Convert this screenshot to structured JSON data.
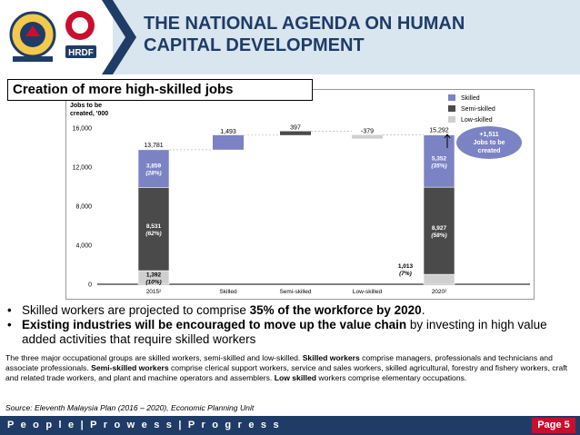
{
  "header": {
    "title_line1": "THE NATIONAL AGENDA ON HUMAN",
    "title_line2": "CAPITAL DEVELOPMENT",
    "logo_text": "HRDF"
  },
  "subtitle": "Creation of more high-skilled jobs",
  "chart_data": {
    "type": "bar",
    "ylabel": "Jobs to be created, '000",
    "ylim": [
      0,
      16000
    ],
    "yticks": [
      "0",
      "4,000",
      "8,000",
      "12,000",
      "16,000"
    ],
    "categories": [
      "2015²",
      "Skilled",
      "Semi-skilled",
      "Low-skilled",
      "2020²"
    ],
    "series": [
      {
        "name": "Skilled",
        "color": "#7b83c4"
      },
      {
        "name": "Semi-skilled",
        "color": "#4a4a4a"
      },
      {
        "name": "Low-skilled",
        "color": "#cfcfcf"
      }
    ],
    "bars": [
      {
        "category": "2015²",
        "total": 13781,
        "total_label": "13,781",
        "segments": [
          {
            "series": "Low-skilled",
            "value": 1392,
            "label1": "1,392",
            "label2": "(10%)"
          },
          {
            "series": "Semi-skilled",
            "value": 8531,
            "label1": "8,531",
            "label2": "(62%)"
          },
          {
            "series": "Skilled",
            "value": 3859,
            "label1": "3,859",
            "label2": "(28%)"
          }
        ]
      },
      {
        "category": "Skilled",
        "base": 13781,
        "delta": 1493,
        "label": "1,493",
        "series": "Skilled"
      },
      {
        "category": "Semi-skilled",
        "base": 15274,
        "delta": 397,
        "label": "397",
        "series": "Semi-skilled"
      },
      {
        "category": "Low-skilled",
        "base": 15292,
        "delta": -379,
        "label": "-379",
        "series": "Low-skilled"
      },
      {
        "category": "2020²",
        "total": 15292,
        "total_label": "15,292",
        "segments": [
          {
            "series": "Low-skilled",
            "value": 1013,
            "label1": "1,013",
            "label2": "(7%)"
          },
          {
            "series": "Semi-skilled",
            "value": 8927,
            "label1": "8,927",
            "label2": "(58%)"
          },
          {
            "series": "Skilled",
            "value": 5352,
            "label1": "5,352",
            "label2": "(35%)"
          }
        ]
      }
    ],
    "callout": {
      "line1": "+1,511",
      "line2": "Jobs to be",
      "line3": "created"
    },
    "legend_placement": "top-right"
  },
  "bullets": [
    {
      "pre": "Skilled workers are projected to comprise ",
      "bold": "35% of the workforce by 2020",
      "post": "."
    },
    {
      "pre": "",
      "bold": "Existing industries will be encouraged to move up the value chain",
      "post": " by investing in high value added activities that require skilled workers"
    }
  ],
  "note": {
    "t1": "The three major occupational groups are skilled workers, semi-skilled and low-skilled. ",
    "b1": "Skilled workers",
    "t2": " comprise managers, professionals and technicians and associate professionals. ",
    "b2": "Semi-skilled workers",
    "t3": " comprise clerical support workers, service and sales workers, skilled agricultural, forestry and fishery workers, craft and related trade workers, and plant and machine operators and assemblers. ",
    "b3": "Low skilled",
    "t4": " workers comprise elementary occupations."
  },
  "source": "Source: Eleventh Malaysia Plan (2016 – 2020), Economic Planning Unit",
  "footer": {
    "tagline": "P e o p l e  |  P r o w e s s  |  P r o g r e s s",
    "page": "Page 5"
  }
}
